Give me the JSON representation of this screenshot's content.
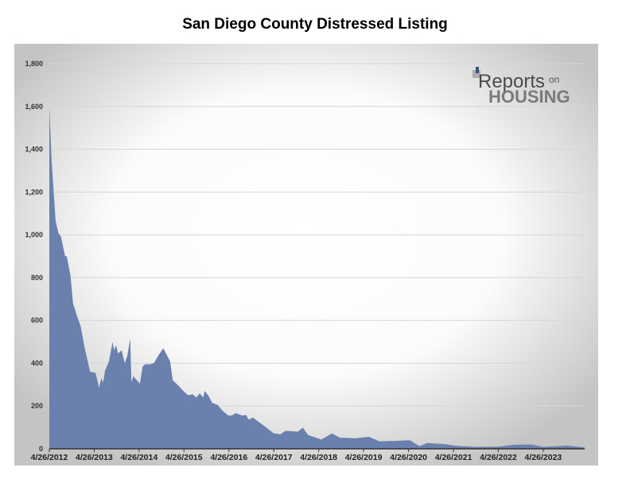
{
  "chart_data": {
    "type": "area",
    "title": "San Diego County Distressed Listing",
    "xlabel": "",
    "ylabel": "",
    "ylim": [
      0,
      1800
    ],
    "yticks": [
      "0",
      "200",
      "400",
      "600",
      "800",
      "1,000",
      "1,200",
      "1,400",
      "1,600",
      "1,800"
    ],
    "xticks": [
      "4/26/2012",
      "4/26/2013",
      "4/26/2014",
      "4/26/2015",
      "4/26/2016",
      "4/26/2017",
      "4/26/2018",
      "4/26/2019",
      "4/26/2020",
      "4/26/2021",
      "4/26/2022",
      "4/26/2023"
    ],
    "xlim": [
      "2012-04-26",
      "2024-03-28"
    ],
    "grid": true,
    "fill_color": "#6a80ad",
    "series": [
      {
        "x": [
          "2012-04-26",
          "2012-05-14",
          "2012-06-16",
          "2012-07-08",
          "2012-07-30",
          "2012-09-01",
          "2012-09-15",
          "2012-10-15",
          "2012-11-05",
          "2012-12-08",
          "2013-01-07",
          "2013-02-08",
          "2013-03-24",
          "2013-05-07",
          "2013-06-05",
          "2013-06-23",
          "2013-07-08",
          "2013-07-23",
          "2013-08-24",
          "2013-09-23",
          "2013-10-04",
          "2013-10-22",
          "2013-11-05",
          "2013-12-05",
          "2013-12-30",
          "2014-01-21",
          "2014-02-12",
          "2014-02-23",
          "2014-03-10",
          "2014-04-08",
          "2014-05-03",
          "2014-05-25",
          "2014-06-16",
          "2014-07-23",
          "2014-08-24",
          "2014-10-04",
          "2014-11-09",
          "2014-12-01",
          "2015-01-03",
          "2015-01-25",
          "2015-02-23",
          "2015-03-28",
          "2015-04-30",
          "2015-06-01",
          "2015-07-04",
          "2015-08-06",
          "2015-09-01",
          "2015-09-30",
          "2015-10-11",
          "2015-11-09",
          "2015-12-12",
          "2016-01-25",
          "2016-03-09",
          "2016-04-22",
          "2016-05-18",
          "2016-06-20",
          "2016-08-14",
          "2016-09-12",
          "2016-10-04",
          "2016-11-06",
          "2017-01-29",
          "2017-04-26",
          "2017-06-20",
          "2017-07-30",
          "2017-11-07",
          "2017-12-17",
          "2018-01-30",
          "2018-05-18",
          "2018-08-11",
          "2018-10-15",
          "2019-02-20",
          "2019-06-09",
          "2019-09-01",
          "2019-12-20",
          "2020-05-07",
          "2020-07-23",
          "2020-09-23",
          "2021-02-20",
          "2021-04-26",
          "2021-10-15",
          "2022-04-26",
          "2022-09-01",
          "2023-01-22",
          "2023-04-26",
          "2023-11-07",
          "2024-03-18"
        ],
        "values": [
          1600,
          1350,
          1065,
          1010,
          990,
          900,
          900,
          810,
          680,
          620,
          570,
          470,
          360,
          355,
          285,
          330,
          310,
          365,
          410,
          500,
          460,
          485,
          445,
          460,
          400,
          435,
          515,
          310,
          340,
          320,
          305,
          385,
          395,
          395,
          400,
          440,
          470,
          445,
          410,
          320,
          305,
          285,
          265,
          250,
          255,
          240,
          260,
          240,
          270,
          250,
          215,
          205,
          175,
          155,
          155,
          167,
          155,
          158,
          136,
          146,
          111,
          72,
          68,
          84,
          80,
          99,
          64,
          43,
          72,
          52,
          49,
          56,
          35,
          37,
          40,
          12,
          27,
          22,
          15,
          9,
          10,
          19,
          20,
          9,
          15,
          7
        ]
      }
    ]
  },
  "logo": {
    "text_main": "Reports",
    "text_small": "on",
    "text_bottom": "HOUSING"
  }
}
